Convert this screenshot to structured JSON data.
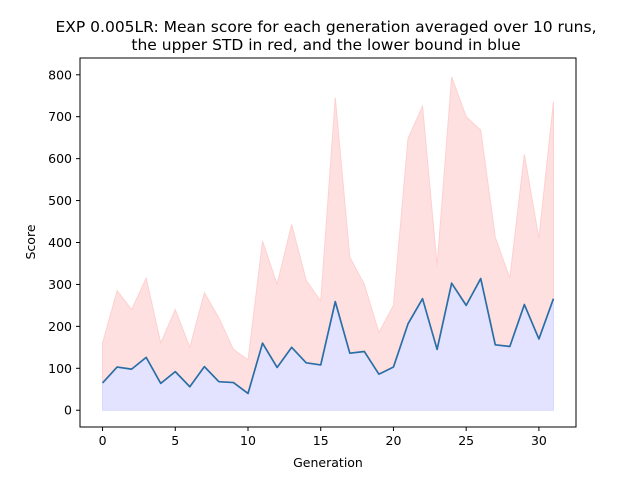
{
  "chart_data": {
    "type": "line",
    "title_line1": "EXP 0.005LR: Mean score for each generation averaged over 10 runs,",
    "title_line2": "the upper STD in red, and the lower bound in blue",
    "xlabel": "Generation",
    "ylabel": "Score",
    "xlim": [
      -1.55,
      32.55
    ],
    "ylim": [
      -40,
      840
    ],
    "xticks": [
      0,
      5,
      10,
      15,
      20,
      25,
      30
    ],
    "yticks": [
      0,
      100,
      200,
      300,
      400,
      500,
      600,
      700,
      800
    ],
    "x": [
      0,
      1,
      2,
      3,
      4,
      5,
      6,
      7,
      8,
      9,
      10,
      11,
      12,
      13,
      14,
      15,
      16,
      17,
      18,
      19,
      20,
      21,
      22,
      23,
      24,
      25,
      26,
      27,
      28,
      29,
      30,
      31
    ],
    "series": [
      {
        "values": [
          65,
          103,
          98,
          126,
          64,
          92,
          56,
          104,
          68,
          66,
          40,
          160,
          102,
          150,
          113,
          108,
          259,
          136,
          140,
          86,
          103,
          206,
          266,
          145,
          303,
          250,
          314,
          156,
          152,
          252,
          170,
          266
        ]
      }
    ],
    "upper_std": [
      160,
      285,
      240,
      315,
      160,
      240,
      150,
      280,
      220,
      145,
      120,
      403,
      300,
      443,
      310,
      260,
      745,
      365,
      300,
      185,
      250,
      648,
      725,
      345,
      795,
      700,
      668,
      412,
      315,
      610,
      410,
      735
    ],
    "lower_bound": [
      0,
      0,
      0,
      0,
      0,
      0,
      0,
      0,
      0,
      0,
      0,
      0,
      0,
      0,
      0,
      0,
      0,
      0,
      0,
      0,
      0,
      0,
      0,
      0,
      0,
      0,
      0,
      0,
      0,
      0,
      0,
      0
    ],
    "colors": {
      "line": "#2a6ea6",
      "upper_fill": "#ffe0e0",
      "upper_edge": "#ffd0d0",
      "lower_fill": "#e3e3ff",
      "lower_edge": "#d8d8ff"
    },
    "grid": false
  }
}
